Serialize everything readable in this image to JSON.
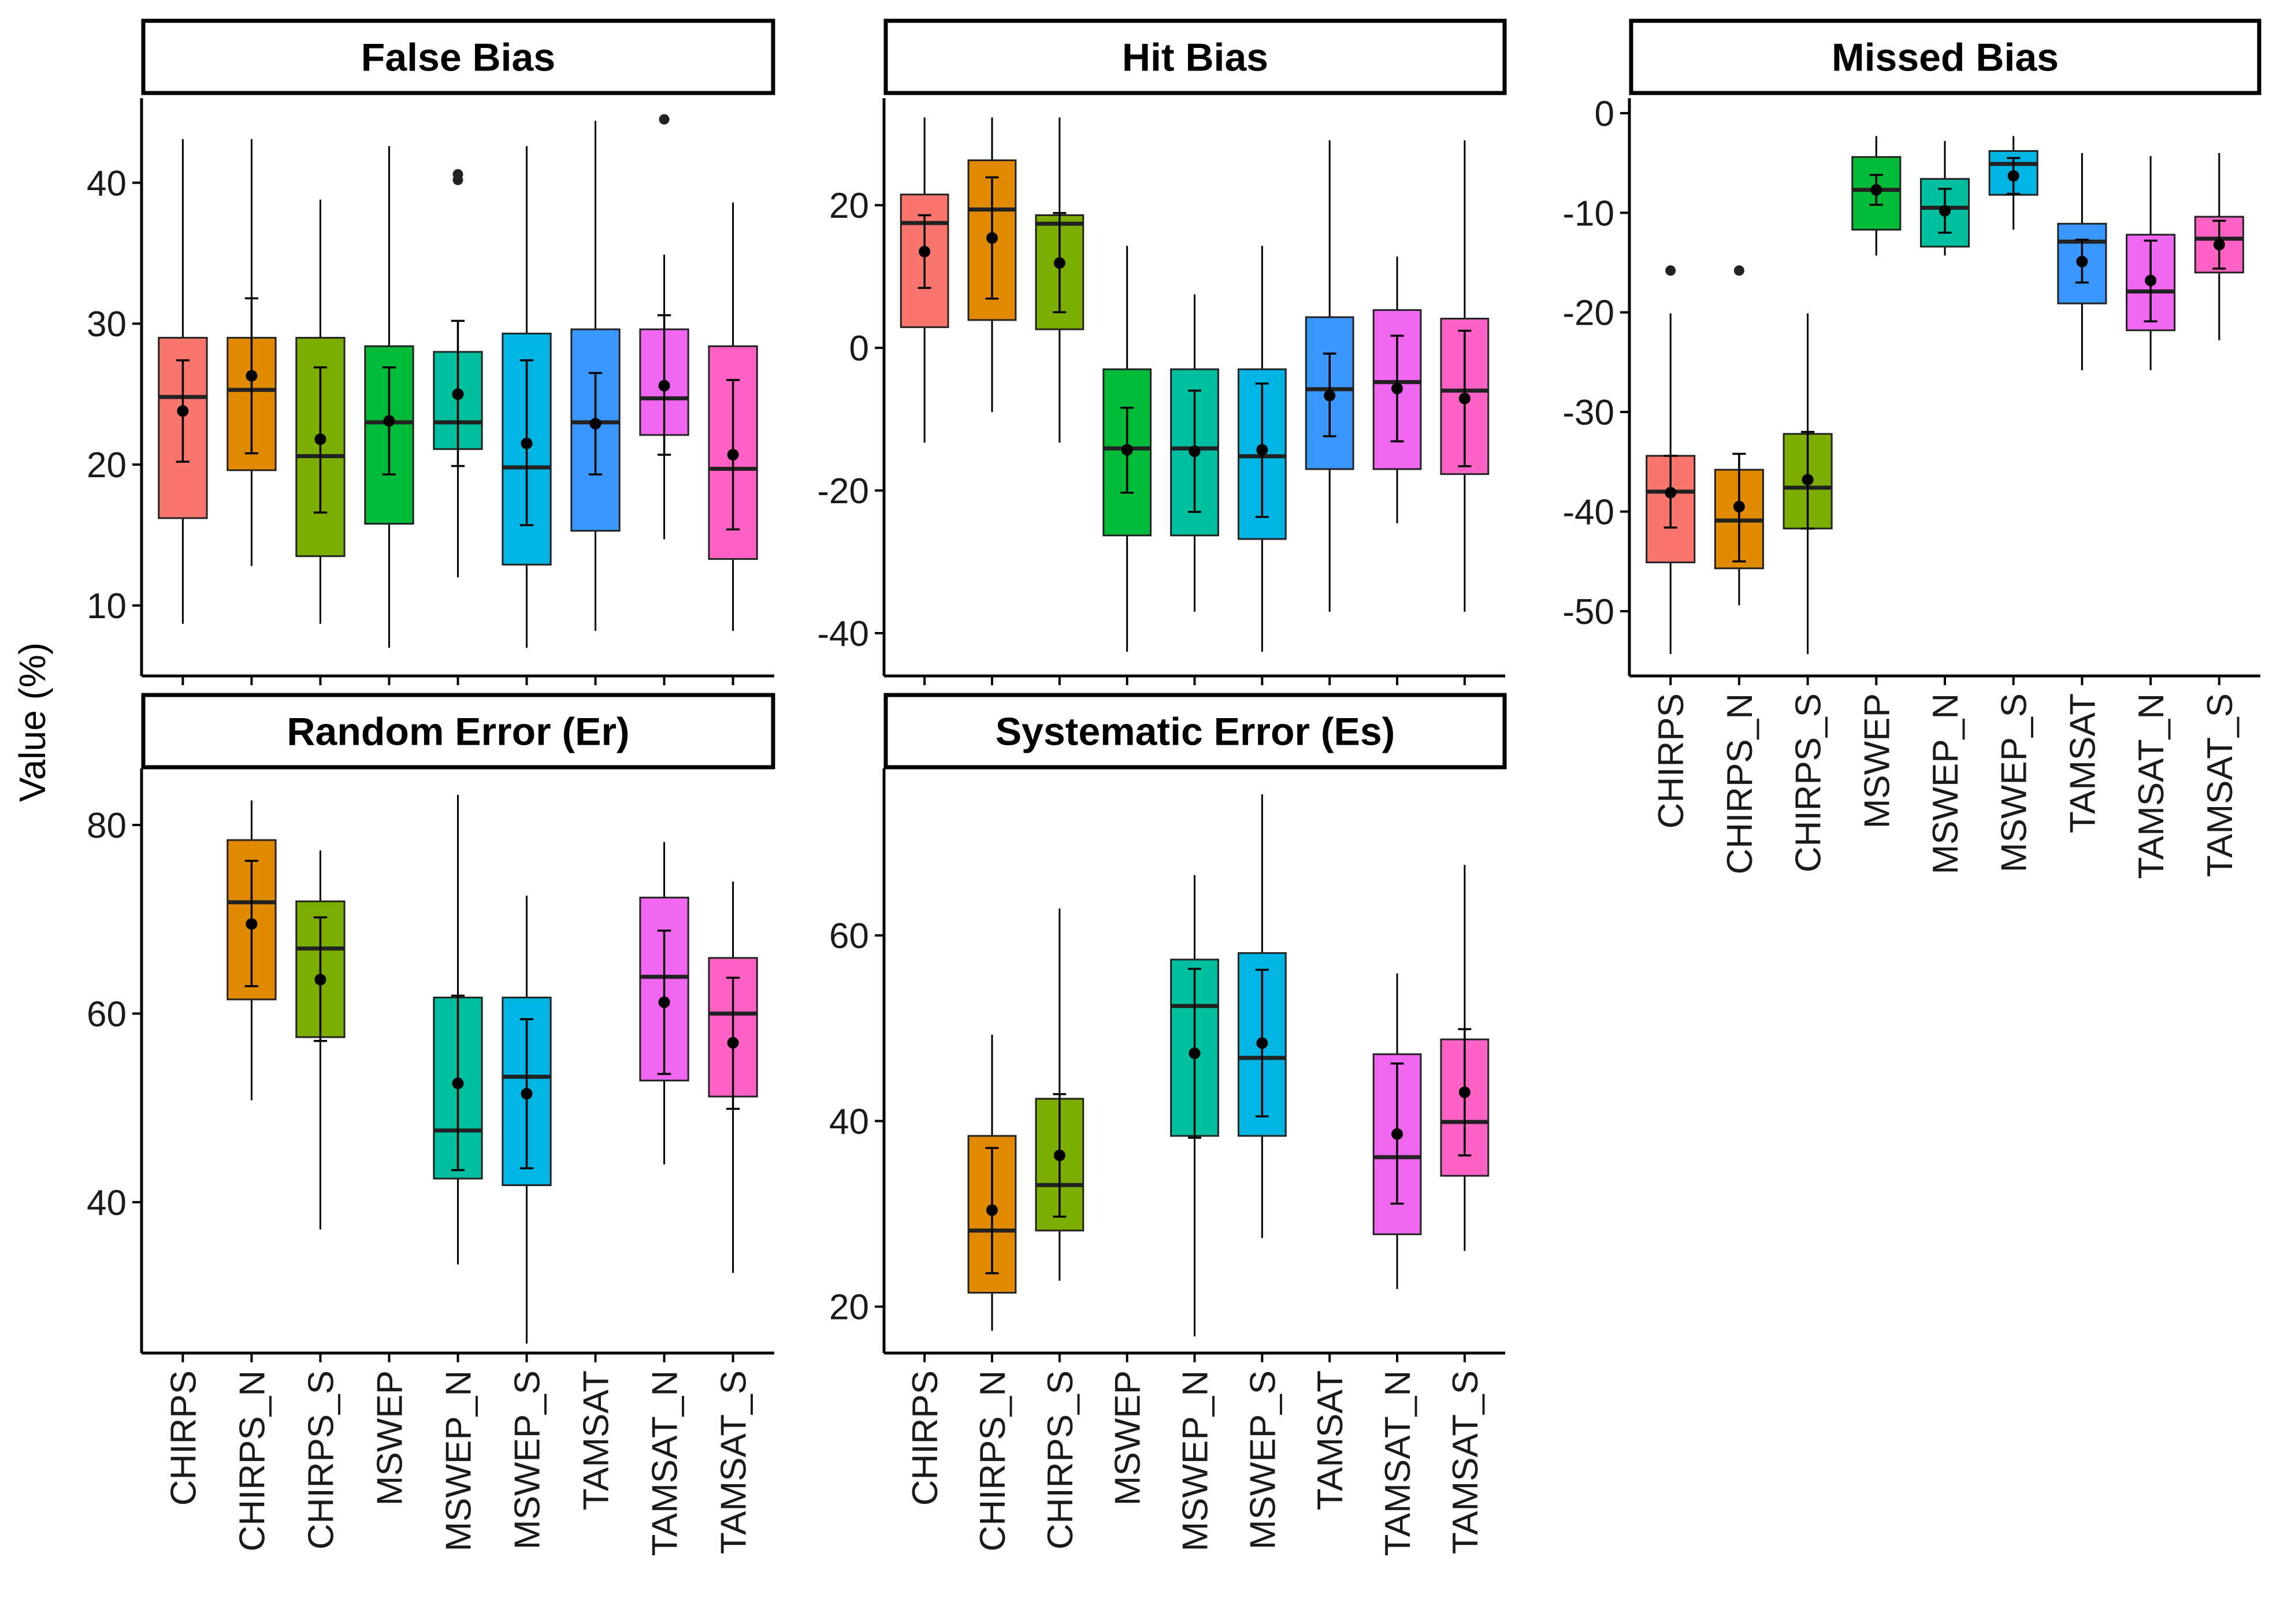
{
  "y_axis_label": "Value (%)",
  "palette": {
    "CHIRPS": "#F8766D",
    "CHIRPS_N": "#E08B00",
    "CHIRPS_S": "#7CAE00",
    "MSWEP": "#00BA38",
    "MSWEP_N": "#00BF9E",
    "MSWEP_S": "#00B4E4",
    "TAMSAT": "#3A97FF",
    "TAMSAT_N": "#F066F0",
    "TAMSAT_S": "#FF62C5"
  },
  "chart_data": [
    {
      "type": "boxplot",
      "title": "False Bias",
      "ylim": [
        5,
        46
      ],
      "yticks": [
        "10",
        "20",
        "30",
        "40"
      ],
      "categories": [
        "CHIRPS",
        "CHIRPS_N",
        "CHIRPS_S",
        "MSWEP",
        "MSWEP_N",
        "MSWEP_S",
        "TAMSAT",
        "TAMSAT_N",
        "TAMSAT_S"
      ],
      "boxes": [
        {
          "category": "CHIRPS",
          "whisker_low": 8.7,
          "q1": 16.2,
          "median": 24.8,
          "q3": 29.0,
          "whisker_high": 43.1,
          "mean": 23.8,
          "err_low": 20.2,
          "err_high": 27.4,
          "outliers": []
        },
        {
          "category": "CHIRPS_N",
          "whisker_low": 12.8,
          "q1": 19.6,
          "median": 25.3,
          "q3": 29.0,
          "whisker_high": 43.1,
          "mean": 26.3,
          "err_low": 20.8,
          "err_high": 31.8,
          "outliers": []
        },
        {
          "category": "CHIRPS_S",
          "whisker_low": 8.7,
          "q1": 13.5,
          "median": 20.6,
          "q3": 29.0,
          "whisker_high": 38.8,
          "mean": 21.8,
          "err_low": 16.6,
          "err_high": 26.9,
          "outliers": []
        },
        {
          "category": "MSWEP",
          "whisker_low": 7.0,
          "q1": 15.8,
          "median": 23.0,
          "q3": 28.4,
          "whisker_high": 42.6,
          "mean": 23.1,
          "err_low": 19.3,
          "err_high": 26.9,
          "outliers": []
        },
        {
          "category": "MSWEP_N",
          "whisker_low": 12.0,
          "q1": 21.1,
          "median": 23.0,
          "q3": 28.0,
          "whisker_high": 30.2,
          "mean": 25.0,
          "err_low": 19.9,
          "err_high": 30.2,
          "outliers": [
            40.2,
            40.6
          ]
        },
        {
          "category": "MSWEP_S",
          "whisker_low": 7.0,
          "q1": 12.9,
          "median": 19.8,
          "q3": 29.3,
          "whisker_high": 42.6,
          "mean": 21.5,
          "err_low": 15.7,
          "err_high": 27.4,
          "outliers": []
        },
        {
          "category": "TAMSAT",
          "whisker_low": 8.2,
          "q1": 15.3,
          "median": 23.0,
          "q3": 29.6,
          "whisker_high": 44.4,
          "mean": 22.9,
          "err_low": 19.3,
          "err_high": 26.5,
          "outliers": []
        },
        {
          "category": "TAMSAT_N",
          "whisker_low": 14.7,
          "q1": 22.1,
          "median": 24.7,
          "q3": 29.6,
          "whisker_high": 34.9,
          "mean": 25.6,
          "err_low": 20.7,
          "err_high": 30.6,
          "outliers": [
            44.5
          ]
        },
        {
          "category": "TAMSAT_S",
          "whisker_low": 8.2,
          "q1": 13.3,
          "median": 19.7,
          "q3": 28.4,
          "whisker_high": 38.6,
          "mean": 20.7,
          "err_low": 15.4,
          "err_high": 26.0,
          "outliers": []
        }
      ]
    },
    {
      "type": "boxplot",
      "title": "Hit  Bias",
      "ylim": [
        -46,
        35
      ],
      "yticks": [
        "-40",
        "-20",
        "0",
        "20"
      ],
      "categories": [
        "CHIRPS",
        "CHIRPS_N",
        "CHIRPS_S",
        "MSWEP",
        "MSWEP_N",
        "MSWEP_S",
        "TAMSAT",
        "TAMSAT_N",
        "TAMSAT_S"
      ],
      "boxes": [
        {
          "category": "CHIRPS",
          "whisker_low": -13.3,
          "q1": 2.9,
          "median": 17.5,
          "q3": 21.5,
          "whisker_high": 32.3,
          "mean": 13.5,
          "err_low": 8.4,
          "err_high": 18.6,
          "outliers": []
        },
        {
          "category": "CHIRPS_N",
          "whisker_low": -9.0,
          "q1": 3.9,
          "median": 19.4,
          "q3": 26.3,
          "whisker_high": 32.3,
          "mean": 15.4,
          "err_low": 6.9,
          "err_high": 23.9,
          "outliers": []
        },
        {
          "category": "CHIRPS_S",
          "whisker_low": -13.3,
          "q1": 2.6,
          "median": 17.4,
          "q3": 18.6,
          "whisker_high": 32.3,
          "mean": 11.9,
          "err_low": 5.0,
          "err_high": 18.9,
          "outliers": []
        },
        {
          "category": "MSWEP",
          "whisker_low": -42.6,
          "q1": -26.3,
          "median": -14.1,
          "q3": -3.0,
          "whisker_high": 14.3,
          "mean": -14.3,
          "err_low": -20.3,
          "err_high": -8.4,
          "outliers": []
        },
        {
          "category": "MSWEP_N",
          "whisker_low": -37.0,
          "q1": -26.3,
          "median": -14.1,
          "q3": -3.0,
          "whisker_high": 7.5,
          "mean": -14.5,
          "err_low": -23.0,
          "err_high": -6.0,
          "outliers": []
        },
        {
          "category": "MSWEP_S",
          "whisker_low": -42.6,
          "q1": -26.8,
          "median": -15.2,
          "q3": -3.0,
          "whisker_high": 14.3,
          "mean": -14.3,
          "err_low": -23.7,
          "err_high": -5.0,
          "outliers": []
        },
        {
          "category": "TAMSAT",
          "whisker_low": -37.0,
          "q1": -17.0,
          "median": -5.8,
          "q3": 4.3,
          "whisker_high": 29.1,
          "mean": -6.7,
          "err_low": -12.4,
          "err_high": -0.8,
          "outliers": []
        },
        {
          "category": "TAMSAT_N",
          "whisker_low": -24.6,
          "q1": -17.0,
          "median": -4.8,
          "q3": 5.3,
          "whisker_high": 12.8,
          "mean": -5.7,
          "err_low": -13.1,
          "err_high": 1.7,
          "outliers": []
        },
        {
          "category": "TAMSAT_S",
          "whisker_low": -37.0,
          "q1": -17.7,
          "median": -6.0,
          "q3": 4.1,
          "whisker_high": 29.1,
          "mean": -7.1,
          "err_low": -16.6,
          "err_high": 2.4,
          "outliers": []
        }
      ]
    },
    {
      "type": "boxplot",
      "title": "Missed Bias",
      "ylim": [
        -56.5,
        1.5
      ],
      "yticks": [
        "-50",
        "-40",
        "-30",
        "-20",
        "-10",
        "0"
      ],
      "categories": [
        "CHIRPS",
        "CHIRPS_N",
        "CHIRPS_S",
        "MSWEP",
        "MSWEP_N",
        "MSWEP_S",
        "TAMSAT",
        "TAMSAT_N",
        "TAMSAT_S"
      ],
      "boxes": [
        {
          "category": "CHIRPS",
          "whisker_low": -54.3,
          "q1": -45.1,
          "median": -38.0,
          "q3": -34.4,
          "whisker_high": -20.1,
          "mean": -38.1,
          "err_low": -41.6,
          "err_high": -34.4,
          "outliers": [
            -15.8
          ]
        },
        {
          "category": "CHIRPS_N",
          "whisker_low": -49.4,
          "q1": -45.7,
          "median": -40.9,
          "q3": -35.8,
          "whisker_high": -34.2,
          "mean": -39.5,
          "err_low": -45.0,
          "err_high": -34.2,
          "outliers": [
            -15.8
          ]
        },
        {
          "category": "CHIRPS_S",
          "whisker_low": -54.3,
          "q1": -41.7,
          "median": -37.6,
          "q3": -32.2,
          "whisker_high": -20.1,
          "mean": -36.8,
          "err_low": -41.7,
          "err_high": -32.0,
          "outliers": []
        },
        {
          "category": "MSWEP",
          "whisker_low": -14.3,
          "q1": -11.7,
          "median": -7.7,
          "q3": -4.4,
          "whisker_high": -2.3,
          "mean": -7.7,
          "err_low": -9.2,
          "err_high": -6.2,
          "outliers": []
        },
        {
          "category": "MSWEP_N",
          "whisker_low": -14.3,
          "q1": -13.4,
          "median": -9.5,
          "q3": -6.6,
          "whisker_high": -2.8,
          "mean": -9.8,
          "err_low": -12.0,
          "err_high": -7.6,
          "outliers": []
        },
        {
          "category": "MSWEP_S",
          "whisker_low": -11.7,
          "q1": -8.2,
          "median": -5.1,
          "q3": -3.8,
          "whisker_high": -2.3,
          "mean": -6.3,
          "err_low": -8.1,
          "err_high": -4.5,
          "outliers": []
        },
        {
          "category": "TAMSAT",
          "whisker_low": -25.8,
          "q1": -19.1,
          "median": -12.9,
          "q3": -11.1,
          "whisker_high": -4.0,
          "mean": -14.9,
          "err_low": -17.0,
          "err_high": -12.7,
          "outliers": []
        },
        {
          "category": "TAMSAT_N",
          "whisker_low": -25.8,
          "q1": -21.8,
          "median": -17.9,
          "q3": -12.2,
          "whisker_high": -4.3,
          "mean": -16.8,
          "err_low": -20.9,
          "err_high": -12.8,
          "outliers": []
        },
        {
          "category": "TAMSAT_S",
          "whisker_low": -22.8,
          "q1": -16.0,
          "median": -12.6,
          "q3": -10.4,
          "whisker_high": -4.0,
          "mean": -13.2,
          "err_low": -15.6,
          "err_high": -10.8,
          "outliers": []
        }
      ]
    },
    {
      "type": "boxplot",
      "title": "Random Error (Er)",
      "ylim": [
        24,
        86
      ],
      "yticks": [
        "40",
        "60",
        "80"
      ],
      "categories": [
        "CHIRPS",
        "CHIRPS_N",
        "CHIRPS_S",
        "MSWEP",
        "MSWEP_N",
        "MSWEP_S",
        "TAMSAT",
        "TAMSAT_N",
        "TAMSAT_S"
      ],
      "boxes": [
        {
          "category": "CHIRPS_N",
          "whisker_low": 50.8,
          "q1": 61.5,
          "median": 71.8,
          "q3": 78.4,
          "whisker_high": 82.6,
          "mean": 69.5,
          "err_low": 62.9,
          "err_high": 76.2,
          "outliers": []
        },
        {
          "category": "CHIRPS_S",
          "whisker_low": 37.1,
          "q1": 57.5,
          "median": 66.9,
          "q3": 71.9,
          "whisker_high": 77.3,
          "mean": 63.6,
          "err_low": 57.1,
          "err_high": 70.2,
          "outliers": []
        },
        {
          "category": "MSWEP_N",
          "whisker_low": 33.4,
          "q1": 42.5,
          "median": 47.6,
          "q3": 61.7,
          "whisker_high": 83.2,
          "mean": 52.6,
          "err_low": 43.4,
          "err_high": 61.9,
          "outliers": []
        },
        {
          "category": "MSWEP_S",
          "whisker_low": 25.0,
          "q1": 41.8,
          "median": 53.3,
          "q3": 61.7,
          "whisker_high": 72.5,
          "mean": 51.5,
          "err_low": 43.6,
          "err_high": 59.4,
          "outliers": []
        },
        {
          "category": "TAMSAT_N",
          "whisker_low": 44.0,
          "q1": 52.9,
          "median": 63.9,
          "q3": 72.3,
          "whisker_high": 78.2,
          "mean": 61.2,
          "err_low": 53.6,
          "err_high": 68.8,
          "outliers": []
        },
        {
          "category": "TAMSAT_S",
          "whisker_low": 32.5,
          "q1": 51.2,
          "median": 60.0,
          "q3": 65.9,
          "whisker_high": 74.0,
          "mean": 56.9,
          "err_low": 49.9,
          "err_high": 63.8,
          "outliers": []
        }
      ]
    },
    {
      "type": "boxplot",
      "title": "Systematic Error (Es)",
      "ylim": [
        15,
        78
      ],
      "yticks": [
        "20",
        "40",
        "60"
      ],
      "categories": [
        "CHIRPS",
        "CHIRPS_N",
        "CHIRPS_S",
        "MSWEP",
        "MSWEP_N",
        "MSWEP_S",
        "TAMSAT",
        "TAMSAT_N",
        "TAMSAT_S"
      ],
      "boxes": [
        {
          "category": "CHIRPS_N",
          "whisker_low": 17.4,
          "q1": 21.5,
          "median": 28.2,
          "q3": 38.4,
          "whisker_high": 49.3,
          "mean": 30.4,
          "err_low": 23.6,
          "err_high": 37.1,
          "outliers": []
        },
        {
          "category": "CHIRPS_S",
          "whisker_low": 22.8,
          "q1": 28.2,
          "median": 33.1,
          "q3": 42.4,
          "whisker_high": 62.9,
          "mean": 36.3,
          "err_low": 29.7,
          "err_high": 42.9,
          "outliers": []
        },
        {
          "category": "MSWEP_N",
          "whisker_low": 16.8,
          "q1": 38.4,
          "median": 52.4,
          "q3": 57.4,
          "whisker_high": 66.5,
          "mean": 47.3,
          "err_low": 38.2,
          "err_high": 56.4,
          "outliers": []
        },
        {
          "category": "MSWEP_S",
          "whisker_low": 27.4,
          "q1": 38.4,
          "median": 46.8,
          "q3": 58.1,
          "whisker_high": 75.2,
          "mean": 48.4,
          "err_low": 40.5,
          "err_high": 56.3,
          "outliers": []
        },
        {
          "category": "TAMSAT_N",
          "whisker_low": 21.9,
          "q1": 27.8,
          "median": 36.1,
          "q3": 47.2,
          "whisker_high": 55.9,
          "mean": 38.6,
          "err_low": 31.1,
          "err_high": 46.2,
          "outliers": []
        },
        {
          "category": "TAMSAT_S",
          "whisker_low": 26.0,
          "q1": 34.1,
          "median": 39.9,
          "q3": 48.8,
          "whisker_high": 67.6,
          "mean": 43.1,
          "err_low": 36.3,
          "err_high": 49.9,
          "outliers": []
        }
      ]
    }
  ]
}
